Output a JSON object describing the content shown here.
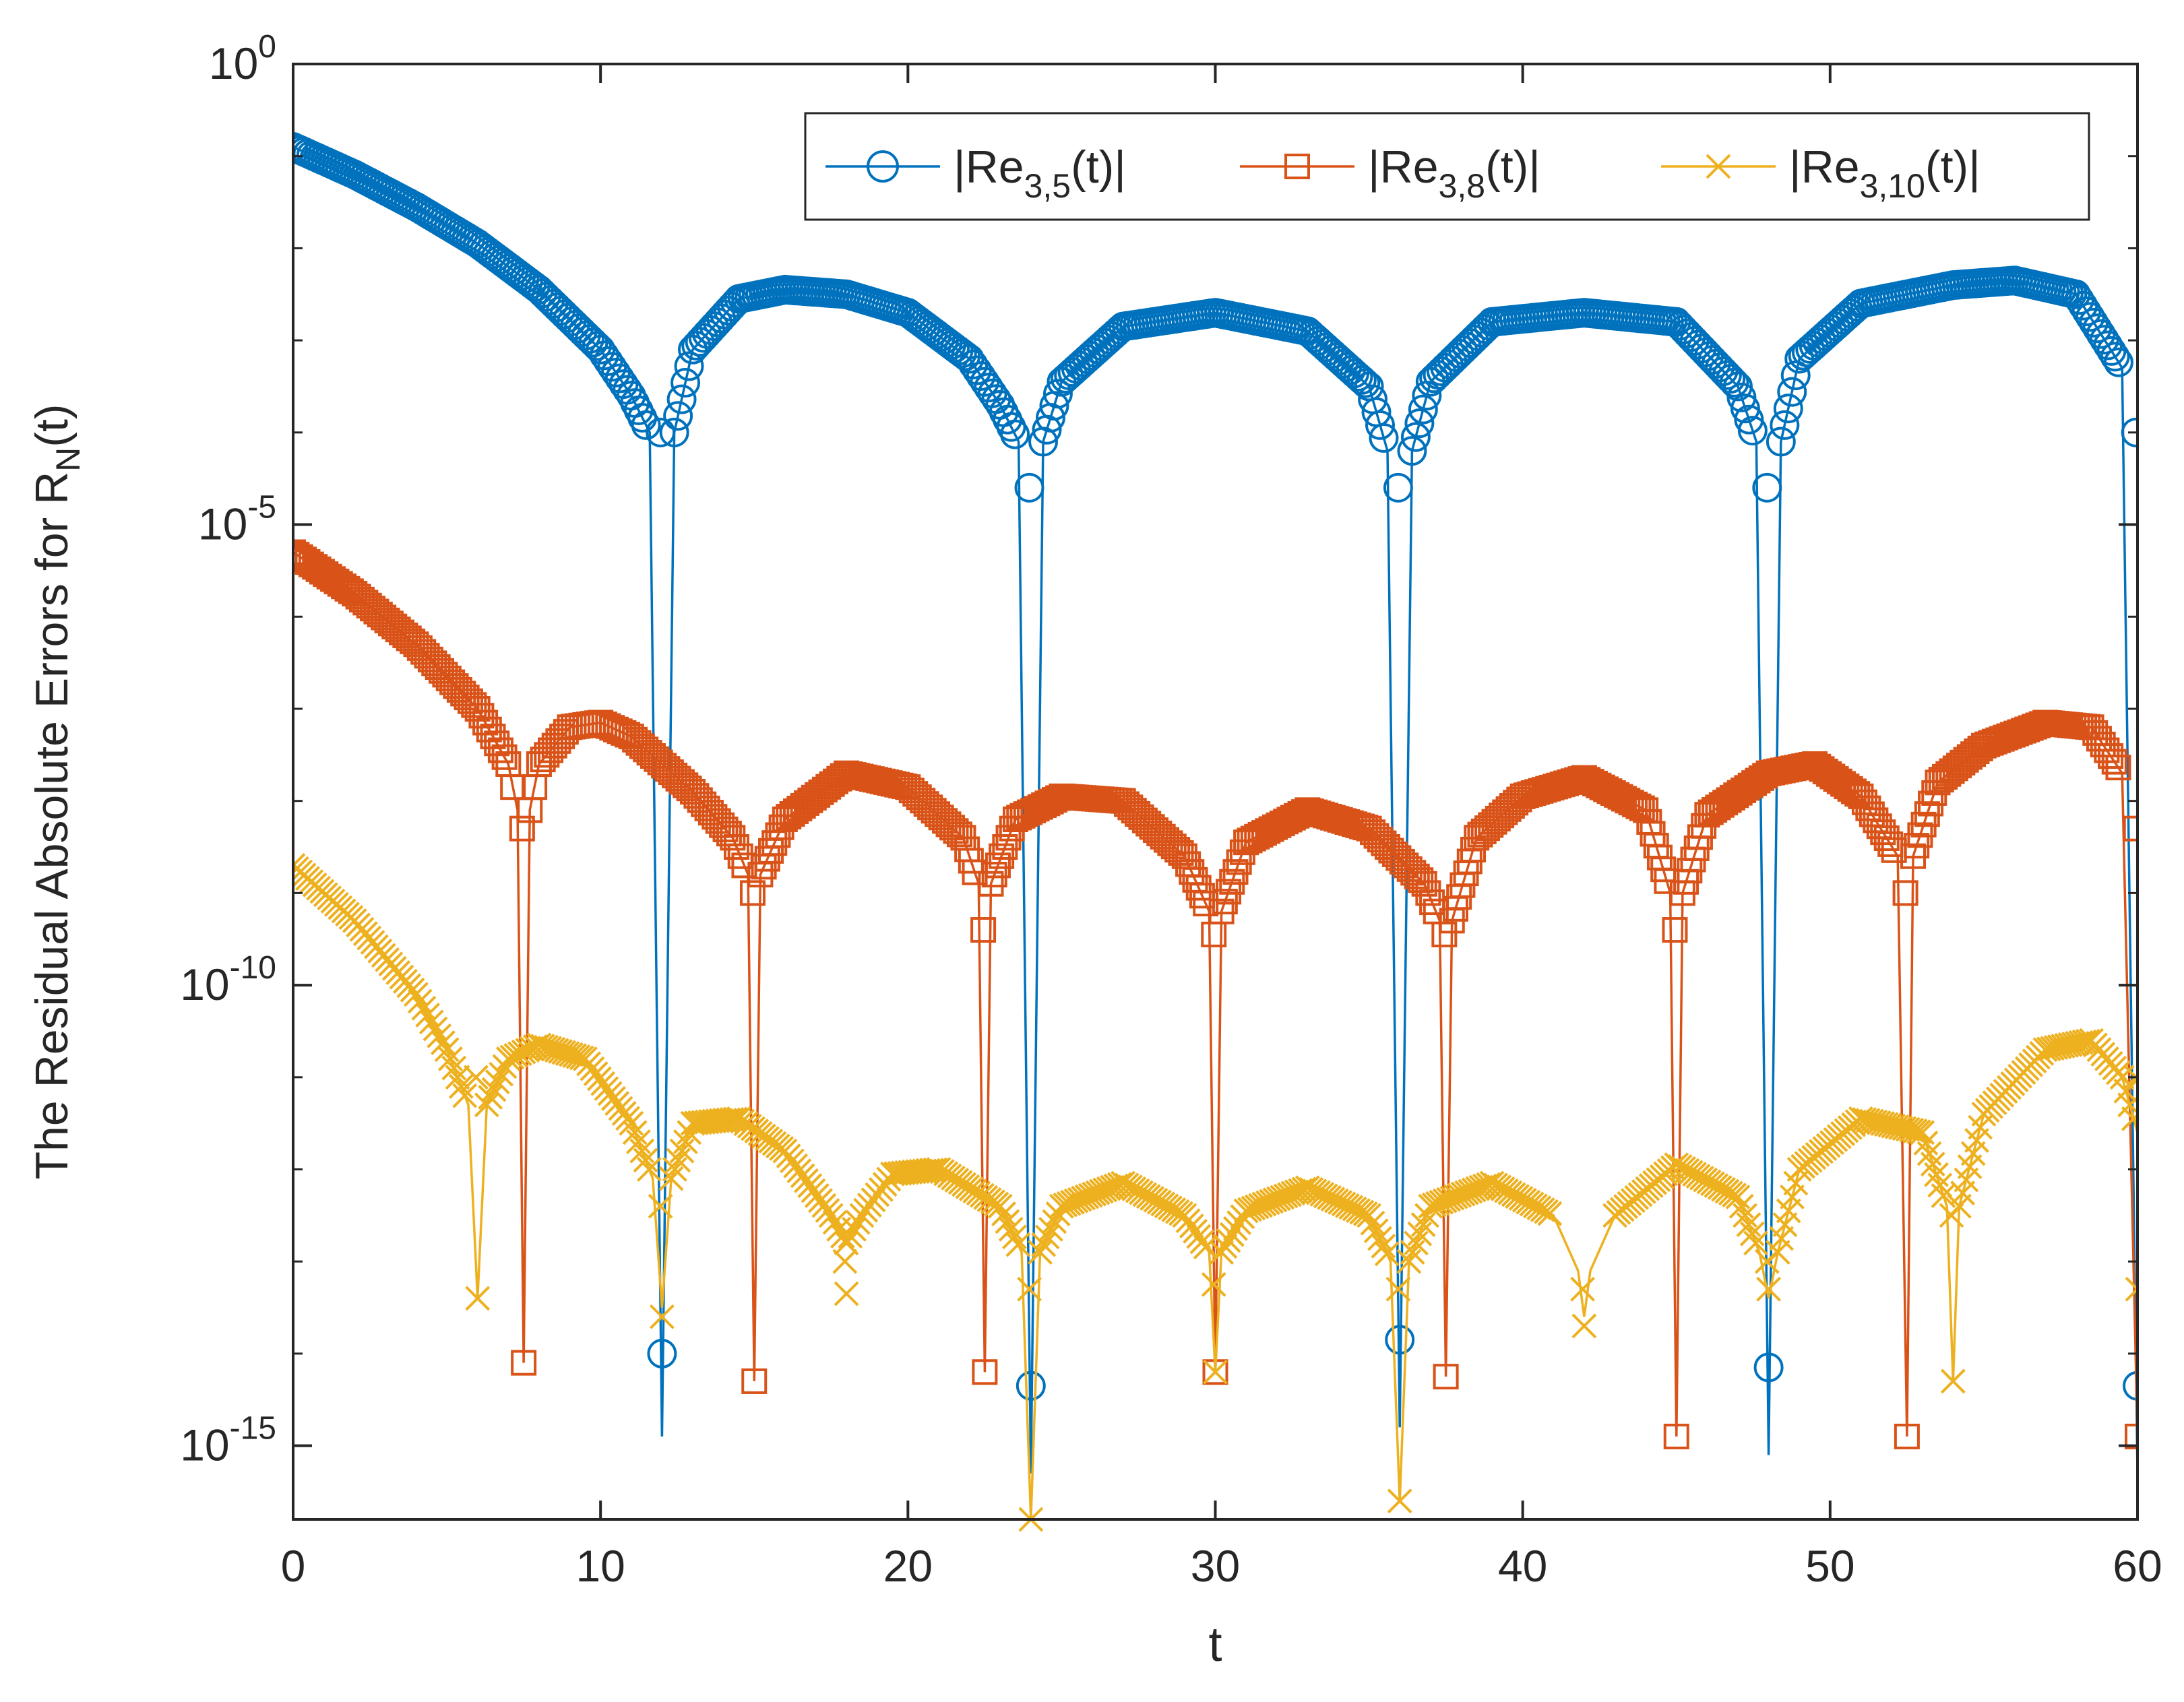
{
  "chart_data": {
    "type": "line",
    "title": "",
    "xlabel": "t",
    "ylabel": "The Residual Absolute Errors for R",
    "ylabel_subscript": "N",
    "ylabel_suffix": "(t)",
    "xlim": [
      0,
      60
    ],
    "ylim_log10": [
      -15.8,
      0
    ],
    "yscale": "log",
    "x_ticks": [
      0,
      10,
      20,
      30,
      40,
      50,
      60
    ],
    "x_tick_labels": [
      "0",
      "10",
      "20",
      "30",
      "40",
      "50",
      "60"
    ],
    "y_ticks_log10": [
      0,
      -5,
      -10,
      -15
    ],
    "y_tick_base": "10",
    "y_tick_exponents": [
      "0",
      "-5",
      "-10",
      "-15"
    ],
    "grid": false,
    "legend_position": "top-right",
    "series": [
      {
        "name": "|Re3,5(t)|",
        "legend_main": "|Re",
        "legend_sub": "3,5",
        "legend_tail": "(t)|",
        "color": "#0072BD",
        "marker": "circle",
        "x": [
          0,
          2,
          4,
          6,
          8,
          10,
          11,
          11.6,
          12,
          12.4,
          13,
          14.5,
          16,
          18,
          20,
          22,
          23,
          23.6,
          24,
          24.4,
          25,
          27,
          30,
          33,
          35,
          35.6,
          36,
          36.4,
          37,
          39,
          42,
          45,
          47,
          47.6,
          48,
          48.4,
          49,
          51,
          54,
          56,
          58,
          59.5,
          60
        ],
        "log10_y": [
          -0.9,
          -1.2,
          -1.55,
          -1.95,
          -2.45,
          -3.1,
          -3.6,
          -4.0,
          -14.9,
          -4.0,
          -3.1,
          -2.55,
          -2.45,
          -2.5,
          -2.7,
          -3.2,
          -3.7,
          -4.1,
          -15.3,
          -4.1,
          -3.45,
          -2.85,
          -2.7,
          -2.9,
          -3.5,
          -4.2,
          -14.8,
          -4.2,
          -3.45,
          -2.8,
          -2.7,
          -2.8,
          -3.5,
          -4.1,
          -15.1,
          -4.1,
          -3.2,
          -2.6,
          -2.4,
          -2.35,
          -2.5,
          -3.3,
          -15.3
        ],
        "drop_markers": [
          {
            "x": 11.95,
            "log10_y": -4.0
          },
          {
            "x": 12.0,
            "log10_y": -14.0
          },
          {
            "x": 23.95,
            "log10_y": -4.6
          },
          {
            "x": 24.0,
            "log10_y": -14.35
          },
          {
            "x": 35.95,
            "log10_y": -4.6
          },
          {
            "x": 36.0,
            "log10_y": -13.85
          },
          {
            "x": 47.95,
            "log10_y": -4.6
          },
          {
            "x": 48.0,
            "log10_y": -14.15
          },
          {
            "x": 59.95,
            "log10_y": -4.0
          },
          {
            "x": 60.0,
            "log10_y": -14.35
          }
        ]
      },
      {
        "name": "|Re3,8(t)|",
        "legend_main": "|Re",
        "legend_sub": "3,8",
        "legend_tail": "(t)|",
        "color": "#D95319",
        "marker": "square",
        "x": [
          0,
          2,
          4,
          6,
          7,
          7.3,
          7.5,
          7.7,
          8,
          9,
          10,
          11,
          13,
          14.3,
          14.8,
          15,
          15.2,
          16,
          18,
          20,
          21.8,
          22.3,
          22.5,
          22.7,
          23.5,
          25,
          27,
          29,
          29.8,
          30,
          30.2,
          31,
          33,
          35,
          36.8,
          37.3,
          37.5,
          37.7,
          38.5,
          40,
          42,
          44,
          44.8,
          45,
          45.2,
          46,
          48,
          49.5,
          51,
          52.2,
          52.5,
          52.7,
          53.5,
          55,
          57,
          58.5,
          59.5,
          60
        ],
        "log10_y": [
          -5.3,
          -5.75,
          -6.3,
          -7.0,
          -7.6,
          -8.1,
          -14.1,
          -8.1,
          -7.6,
          -7.2,
          -7.15,
          -7.3,
          -7.9,
          -8.4,
          -8.8,
          -14.3,
          -8.8,
          -8.2,
          -7.7,
          -7.85,
          -8.4,
          -8.9,
          -14.2,
          -8.9,
          -8.2,
          -7.95,
          -8.0,
          -8.6,
          -9.2,
          -14.2,
          -9.2,
          -8.45,
          -8.1,
          -8.3,
          -8.9,
          -9.3,
          -14.25,
          -9.3,
          -8.4,
          -7.95,
          -7.75,
          -8.1,
          -9.0,
          -14.9,
          -9.0,
          -8.15,
          -7.7,
          -7.6,
          -7.95,
          -8.6,
          -14.9,
          -8.6,
          -7.8,
          -7.4,
          -7.15,
          -7.2,
          -7.7,
          -14.9
        ],
        "drop_markers": [
          {
            "x": 7.45,
            "log10_y": -8.3
          },
          {
            "x": 7.5,
            "log10_y": -14.1
          },
          {
            "x": 14.95,
            "log10_y": -9.0
          },
          {
            "x": 15.0,
            "log10_y": -14.3
          },
          {
            "x": 22.45,
            "log10_y": -9.4
          },
          {
            "x": 22.5,
            "log10_y": -14.2
          },
          {
            "x": 29.95,
            "log10_y": -9.45
          },
          {
            "x": 30.0,
            "log10_y": -14.2
          },
          {
            "x": 37.45,
            "log10_y": -9.45
          },
          {
            "x": 37.5,
            "log10_y": -14.25
          },
          {
            "x": 44.95,
            "log10_y": -9.4
          },
          {
            "x": 45.0,
            "log10_y": -14.9
          },
          {
            "x": 52.45,
            "log10_y": -9.0
          },
          {
            "x": 52.5,
            "log10_y": -14.9
          },
          {
            "x": 59.95,
            "log10_y": -8.3
          },
          {
            "x": 60.0,
            "log10_y": -14.9
          }
        ]
      },
      {
        "name": "|Re3,10(t)|",
        "legend_main": "|Re",
        "legend_sub": "3,10",
        "legend_tail": "(t)|",
        "color": "#EDB120",
        "marker": "x",
        "x": [
          0,
          2,
          4,
          5,
          5.7,
          6,
          6.3,
          7,
          8,
          9.5,
          11,
          11.7,
          12,
          12.3,
          13,
          14.5,
          16,
          17.5,
          18,
          18.5,
          19.5,
          21,
          23,
          23.7,
          24,
          24.3,
          25,
          27,
          29,
          29.8,
          30,
          30.2,
          31,
          33,
          35,
          35.7,
          36,
          36.3,
          37,
          39,
          41,
          41.8,
          42,
          42.2,
          43,
          45,
          47,
          47.7,
          48,
          48.3,
          49,
          51,
          53,
          53.8,
          54,
          54.2,
          55,
          57,
          58.5,
          59.5,
          60
        ],
        "log10_y": [
          -8.7,
          -9.3,
          -10.1,
          -10.7,
          -11.3,
          -13.4,
          -11.3,
          -10.8,
          -10.65,
          -10.8,
          -11.5,
          -12.1,
          -13.5,
          -12.1,
          -11.5,
          -11.45,
          -11.8,
          -12.5,
          -12.8,
          -12.5,
          -12.05,
          -12.0,
          -12.4,
          -12.9,
          -15.8,
          -12.9,
          -12.4,
          -12.15,
          -12.5,
          -12.9,
          -14.2,
          -12.9,
          -12.45,
          -12.2,
          -12.5,
          -13.0,
          -15.6,
          -13.0,
          -12.4,
          -12.15,
          -12.5,
          -13.1,
          -13.6,
          -13.1,
          -12.5,
          -11.95,
          -12.3,
          -12.9,
          -13.4,
          -12.9,
          -12.0,
          -11.45,
          -11.6,
          -12.4,
          -14.3,
          -12.4,
          -11.4,
          -10.7,
          -10.6,
          -11.0,
          -11.6
        ],
        "drop_markers": [
          {
            "x": 5.95,
            "log10_y": -11.0
          },
          {
            "x": 6.0,
            "log10_y": -13.4
          },
          {
            "x": 11.95,
            "log10_y": -12.4
          },
          {
            "x": 12.0,
            "log10_y": -13.6
          },
          {
            "x": 17.95,
            "log10_y": -13.0
          },
          {
            "x": 18.0,
            "log10_y": -13.35
          },
          {
            "x": 23.95,
            "log10_y": -13.3
          },
          {
            "x": 24.0,
            "log10_y": -15.8
          },
          {
            "x": 29.95,
            "log10_y": -13.25
          },
          {
            "x": 30.0,
            "log10_y": -14.2
          },
          {
            "x": 35.95,
            "log10_y": -13.3
          },
          {
            "x": 36.0,
            "log10_y": -15.6
          },
          {
            "x": 41.95,
            "log10_y": -13.3
          },
          {
            "x": 42.0,
            "log10_y": -13.7
          },
          {
            "x": 47.95,
            "log10_y": -13.0
          },
          {
            "x": 48.0,
            "log10_y": -13.3
          },
          {
            "x": 53.95,
            "log10_y": -12.5
          },
          {
            "x": 54.0,
            "log10_y": -14.3
          },
          {
            "x": 59.95,
            "log10_y": -11.0
          },
          {
            "x": 60.0,
            "log10_y": -13.3
          }
        ]
      }
    ]
  }
}
